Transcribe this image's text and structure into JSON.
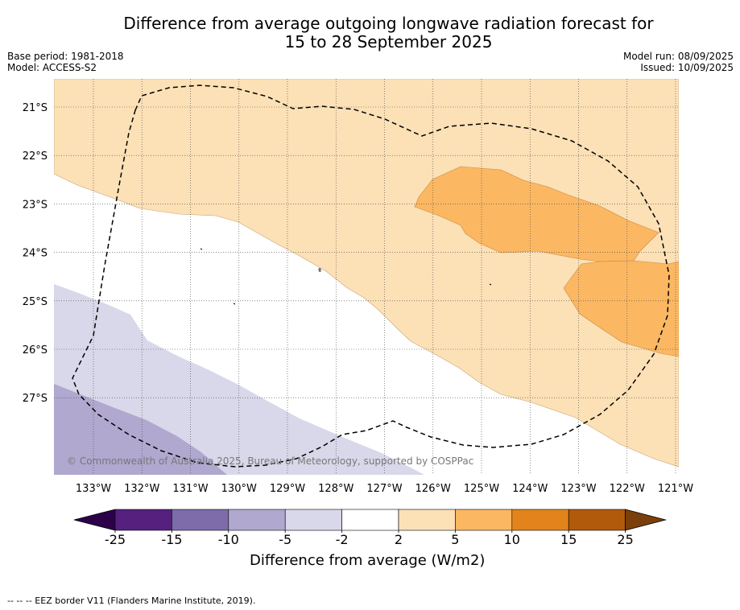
{
  "title_line1": "Difference from average outgoing longwave radiation forecast for",
  "title_line2": "15 to 28 September 2025",
  "base_period": "Base period: 1981-2018",
  "model": "Model: ACCESS-S2",
  "model_run": "Model run: 08/09/2025",
  "issued": "Issued: 10/09/2025",
  "lat_labels": [
    "21°S",
    "22°S",
    "23°S",
    "24°S",
    "25°S",
    "26°S",
    "27°S"
  ],
  "lon_labels": [
    "133°W",
    "132°W",
    "131°W",
    "130°W",
    "129°W",
    "128°W",
    "127°W",
    "126°W",
    "125°W",
    "124°W",
    "123°W",
    "122°W",
    "121°W"
  ],
  "copyright": "© Commonwealth of Australia 2025, Bureau of Meteorology, supported by COSPPac",
  "colorbar": {
    "title": "Difference from average (W/m2)",
    "ticks": [
      "-25",
      "-15",
      "-10",
      "-5",
      "-2",
      "2",
      "5",
      "10",
      "15",
      "25"
    ],
    "colors": [
      "#56207f",
      "#7d6ca9",
      "#b0a8cf",
      "#d9d8ea",
      "#ffffff",
      "#fce0b6",
      "#fbb762",
      "#e2841b",
      "#b15a0c"
    ],
    "under_color": "#2d004a",
    "over_color": "#7a3f0a"
  },
  "footnote": "-- -- -- EEZ border V11 (Flanders Marine Institute, 2019)."
}
